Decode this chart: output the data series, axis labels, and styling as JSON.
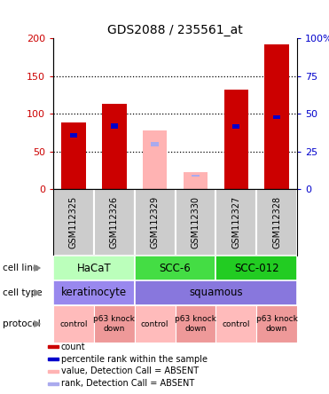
{
  "title": "GDS2088 / 235561_at",
  "samples": [
    "GSM112325",
    "GSM112326",
    "GSM112329",
    "GSM112330",
    "GSM112327",
    "GSM112328"
  ],
  "count_values": [
    88,
    113,
    0,
    0,
    132,
    192
  ],
  "absent_value_values": [
    0,
    0,
    78,
    22,
    0,
    0
  ],
  "blue_bar_bottom": [
    68,
    80,
    0,
    0,
    80,
    93
  ],
  "blue_bar_top": [
    74,
    87,
    0,
    0,
    86,
    98
  ],
  "absent_rank_bottom": [
    0,
    0,
    57,
    16,
    0,
    0
  ],
  "absent_rank_top": [
    0,
    0,
    62,
    19,
    0,
    0
  ],
  "ylim_left": [
    0,
    200
  ],
  "ylim_right": [
    0,
    100
  ],
  "yticks_left": [
    0,
    50,
    100,
    150,
    200
  ],
  "yticks_right": [
    0,
    25,
    50,
    75,
    100
  ],
  "ytick_labels_right": [
    "0",
    "25",
    "50",
    "75",
    "100%"
  ],
  "color_red": "#cc0000",
  "color_pink": "#ffb3b3",
  "color_blue": "#0000cc",
  "color_lightblue": "#aaaaee",
  "sample_bg": "#cccccc",
  "cell_line_groups": [
    {
      "label": "HaCaT",
      "start": 0,
      "end": 2,
      "color": "#bbffbb"
    },
    {
      "label": "SCC-6",
      "start": 2,
      "end": 4,
      "color": "#44dd44"
    },
    {
      "label": "SCC-012",
      "start": 4,
      "end": 6,
      "color": "#22cc22"
    }
  ],
  "cell_type_groups": [
    {
      "label": "keratinocyte",
      "start": 0,
      "end": 2,
      "color": "#9988ee"
    },
    {
      "label": "squamous",
      "start": 2,
      "end": 6,
      "color": "#8877dd"
    }
  ],
  "protocol_groups": [
    {
      "label": "control",
      "start": 0,
      "end": 1,
      "color": "#ffbbbb"
    },
    {
      "label": "p63 knock\ndown",
      "start": 1,
      "end": 2,
      "color": "#ee9999"
    },
    {
      "label": "control",
      "start": 2,
      "end": 3,
      "color": "#ffbbbb"
    },
    {
      "label": "p63 knock\ndown",
      "start": 3,
      "end": 4,
      "color": "#ee9999"
    },
    {
      "label": "control",
      "start": 4,
      "end": 5,
      "color": "#ffbbbb"
    },
    {
      "label": "p63 knock\ndown",
      "start": 5,
      "end": 6,
      "color": "#ee9999"
    }
  ],
  "legend_colors": [
    "#cc0000",
    "#0000cc",
    "#ffb3b3",
    "#aaaaee"
  ],
  "legend_labels": [
    "count",
    "percentile rank within the sample",
    "value, Detection Call = ABSENT",
    "rank, Detection Call = ABSENT"
  ],
  "row_labels": [
    "cell line",
    "cell type",
    "protocol"
  ],
  "bar_width": 0.6
}
